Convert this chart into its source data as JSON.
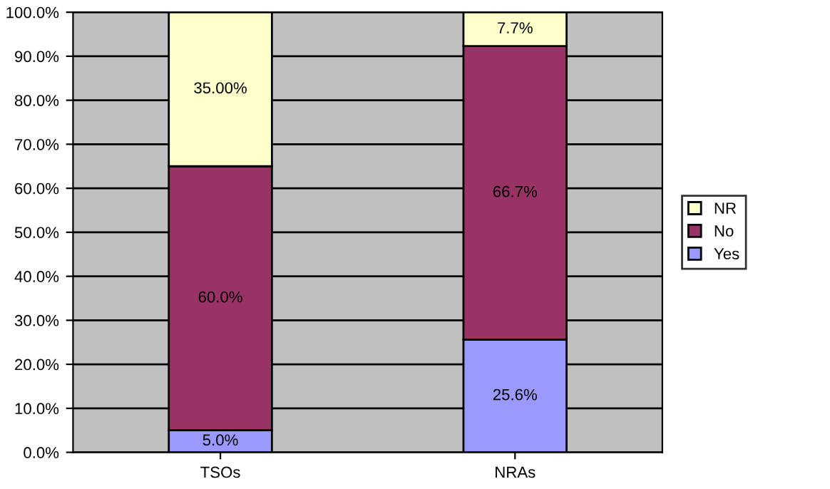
{
  "chart_data": {
    "type": "bar",
    "stacked": true,
    "categories": [
      "TSOs",
      "NRAs"
    ],
    "series": [
      {
        "name": "Yes",
        "color": "#9999ff",
        "values": [
          5.0,
          25.6
        ],
        "value_labels": [
          "5.0%",
          "25.6%"
        ]
      },
      {
        "name": "No",
        "color": "#993366",
        "values": [
          60.0,
          66.7
        ],
        "value_labels": [
          "60.0%",
          "66.7%"
        ]
      },
      {
        "name": "NR",
        "color": "#ffffcc",
        "values": [
          35.0,
          7.7
        ],
        "value_labels": [
          "35.00%",
          "7.7%"
        ]
      }
    ],
    "ylim": [
      0,
      100
    ],
    "yticks": [
      {
        "value": 0,
        "label": "0.0%"
      },
      {
        "value": 10,
        "label": "10.0%"
      },
      {
        "value": 20,
        "label": "20.0%"
      },
      {
        "value": 30,
        "label": "30.0%"
      },
      {
        "value": 40,
        "label": "40.0%"
      },
      {
        "value": 50,
        "label": "50.0%"
      },
      {
        "value": 60,
        "label": "60.0%"
      },
      {
        "value": 70,
        "label": "70.0%"
      },
      {
        "value": 80,
        "label": "80.0%"
      },
      {
        "value": 90,
        "label": "90.0%"
      },
      {
        "value": 100,
        "label": "100.0%"
      }
    ],
    "grid": "y",
    "legend": "right"
  }
}
